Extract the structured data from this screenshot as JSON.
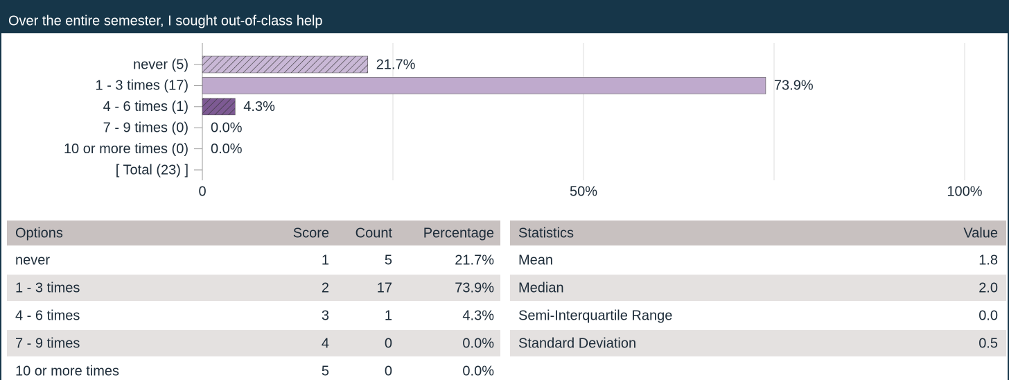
{
  "title": "Over the entire semester, I sought out-of-class help",
  "chart_data": {
    "type": "bar",
    "orientation": "horizontal",
    "categories": [
      "never (5)",
      "1 - 3 times (17)",
      "4 - 6 times (1)",
      "7 - 9 times (0)",
      "10 or more times (0)"
    ],
    "total_label": "[ Total (23) ]",
    "values": [
      21.7,
      73.9,
      4.3,
      0,
      0
    ],
    "value_labels": [
      "21.7%",
      "73.9%",
      "4.3%",
      "0.0%",
      "0.0%"
    ],
    "colors": [
      "#c9b8d6",
      "#bfaacd",
      "#7d5a93",
      "#bfaacd",
      "#bfaacd"
    ],
    "hatched": [
      true,
      false,
      true,
      false,
      false
    ],
    "xlim": [
      0,
      100
    ],
    "xticks": [
      0,
      {
        "value": 50,
        "label": "50%"
      },
      {
        "value": 100,
        "label": "100%"
      }
    ],
    "minor_xticks": [
      25,
      75
    ],
    "grid": true
  },
  "options_table": {
    "header": [
      "Options",
      "Score",
      "Count",
      "Percentage"
    ],
    "rows": [
      [
        "never",
        "1",
        "5",
        "21.7%"
      ],
      [
        "1 - 3 times",
        "2",
        "17",
        "73.9%"
      ],
      [
        "4 - 6 times",
        "3",
        "1",
        "4.3%"
      ],
      [
        "7 - 9 times",
        "4",
        "0",
        "0.0%"
      ],
      [
        "10 or more times",
        "5",
        "0",
        "0.0%"
      ]
    ]
  },
  "statistics_table": {
    "header": [
      "Statistics",
      "Value"
    ],
    "rows": [
      [
        "Mean",
        "1.8"
      ],
      [
        "Median",
        "2.0"
      ],
      [
        "Semi-Interquartile Range",
        "0.0"
      ],
      [
        "Standard Deviation",
        "0.5"
      ]
    ]
  }
}
